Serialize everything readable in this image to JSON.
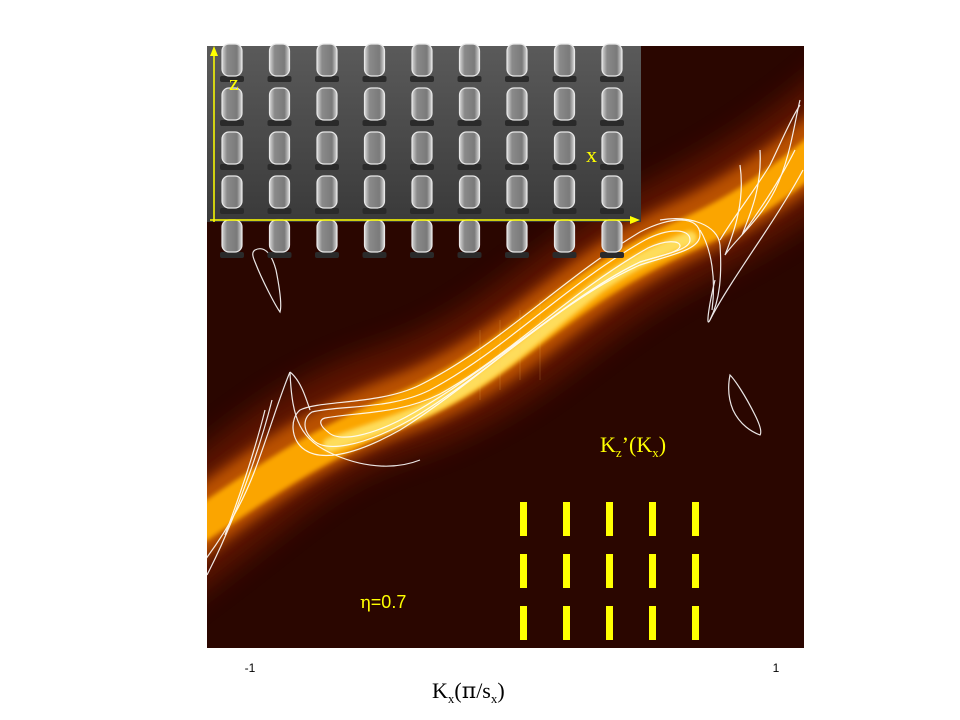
{
  "chart_data": {
    "type": "heatmap",
    "x_ticks": [
      "-1",
      "1"
    ],
    "xlabel": {
      "main": "K",
      "sub1": "x",
      "open": "(",
      "pi": "π",
      "mid": "/s",
      "sub2": "x",
      "close": ")"
    },
    "annotation_curve": {
      "main": "K",
      "sub1": "z",
      "prime": "’(K",
      "sub2": "x",
      "close": ")"
    },
    "annotation_eta": {
      "symbol": "η",
      "text": "=0.7"
    },
    "inset": {
      "axis_vertical": "z",
      "axis_horizontal": "x"
    },
    "colors": {
      "accent": "#ffff00",
      "background": "#2a0600",
      "band": "#ffb000",
      "contour": "#ffffff"
    },
    "marker_grid": {
      "columns": 5,
      "rows": 3
    }
  }
}
